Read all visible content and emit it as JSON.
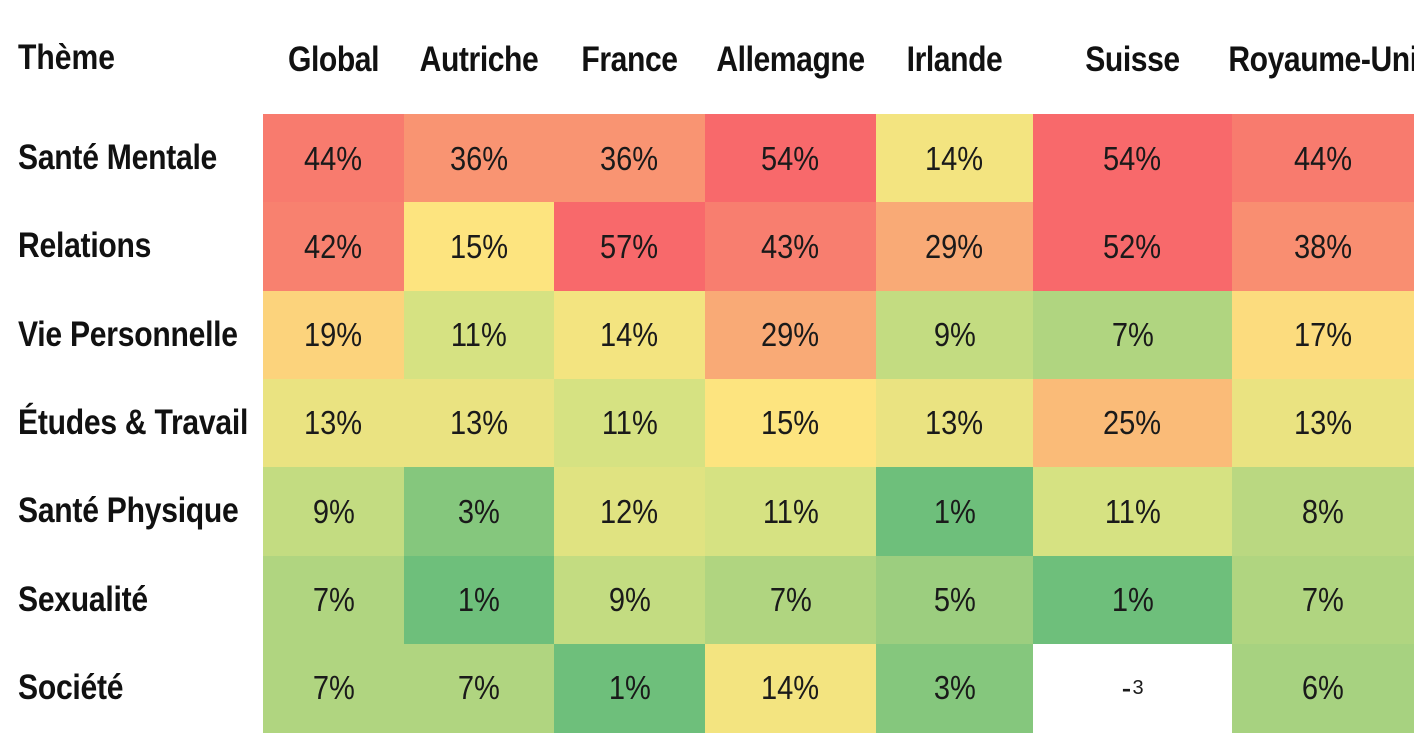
{
  "chart_data": {
    "type": "heatmap",
    "corner_label": "Thème",
    "columns": [
      "Global",
      "Autriche",
      "France",
      "Allemagne",
      "Irlande",
      "Suisse",
      "Royaume-Uni"
    ],
    "rows": [
      {
        "label": "Santé Mentale",
        "values": [
          44,
          36,
          36,
          54,
          14,
          54,
          44
        ],
        "text": [
          "44%",
          "36%",
          "36%",
          "54%",
          "14%",
          "54%",
          "44%"
        ]
      },
      {
        "label": "Relations",
        "values": [
          42,
          15,
          57,
          43,
          29,
          52,
          38
        ],
        "text": [
          "42%",
          "15%",
          "57%",
          "43%",
          "29%",
          "52%",
          "38%"
        ]
      },
      {
        "label": "Vie Personnelle",
        "values": [
          19,
          11,
          14,
          29,
          9,
          7,
          17
        ],
        "text": [
          "19%",
          "11%",
          "14%",
          "29%",
          "9%",
          "7%",
          "17%"
        ]
      },
      {
        "label": "Études & Travail",
        "values": [
          13,
          13,
          11,
          15,
          13,
          25,
          13
        ],
        "text": [
          "13%",
          "13%",
          "11%",
          "15%",
          "13%",
          "25%",
          "13%"
        ]
      },
      {
        "label": "Santé Physique",
        "values": [
          9,
          3,
          12,
          11,
          1,
          11,
          8
        ],
        "text": [
          "9%",
          "3%",
          "12%",
          "11%",
          "1%",
          "11%",
          "8%"
        ]
      },
      {
        "label": "Sexualité",
        "values": [
          7,
          1,
          9,
          7,
          5,
          1,
          7
        ],
        "text": [
          "7%",
          "1%",
          "9%",
          "7%",
          "5%",
          "1%",
          "7%"
        ]
      },
      {
        "label": "Société",
        "values": [
          7,
          7,
          1,
          14,
          3,
          null,
          6
        ],
        "text": [
          "7%",
          "7%",
          "1%",
          "14%",
          "3%",
          "-",
          "6%"
        ]
      }
    ],
    "missing_marker": "-",
    "missing_footnote": "3",
    "colors": {
      "scale_stops": [
        "#62bb7a",
        "#a7d280",
        "#d6e282",
        "#fde47f",
        "#f9a675",
        "#f8696b"
      ],
      "missing": "#ffffff"
    }
  }
}
